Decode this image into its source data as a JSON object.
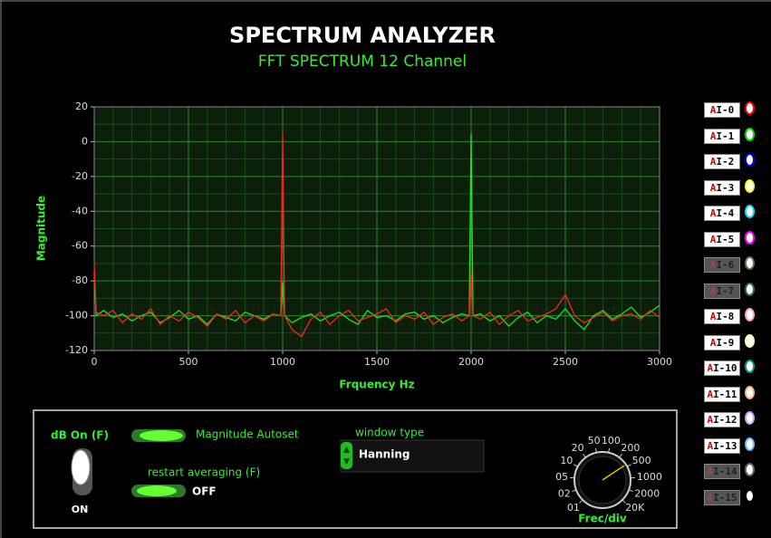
{
  "chart_data": {
    "type": "line",
    "title": "SPECTRUM ANALYZER",
    "subtitle": "FFT SPECTRUM 12 Channel",
    "x_label": "Frquency Hz",
    "y_label": "Magnitude",
    "xlim": [
      0,
      3000
    ],
    "ylim": [
      -120,
      20
    ],
    "xticks": [
      0,
      500,
      1000,
      1500,
      2000,
      2500,
      3000
    ],
    "yticks": [
      -120,
      -100,
      -80,
      -60,
      -40,
      -20,
      0,
      20
    ],
    "grid": true,
    "x": [
      0,
      10,
      50,
      100,
      150,
      200,
      250,
      300,
      350,
      400,
      450,
      500,
      550,
      600,
      650,
      700,
      750,
      800,
      850,
      900,
      950,
      990,
      1000,
      1010,
      1050,
      1100,
      1150,
      1200,
      1250,
      1300,
      1350,
      1400,
      1450,
      1500,
      1550,
      1600,
      1650,
      1700,
      1750,
      1800,
      1850,
      1900,
      1950,
      1990,
      2000,
      2010,
      2050,
      2100,
      2150,
      2200,
      2250,
      2300,
      2350,
      2400,
      2450,
      2500,
      2550,
      2600,
      2650,
      2700,
      2750,
      2800,
      2850,
      2900,
      2950,
      3000
    ],
    "series": [
      {
        "color": "#ff2020",
        "values": [
          -70,
          -98,
          -100,
          -97,
          -104,
          -99,
          -102,
          -96,
          -105,
          -100,
          -103,
          -98,
          -101,
          -106,
          -99,
          -102,
          -97,
          -104,
          -100,
          -103,
          -99,
          -100,
          5,
          -100,
          -108,
          -112,
          -102,
          -98,
          -105,
          -100,
          -97,
          -103,
          -101,
          -99,
          -96,
          -104,
          -100,
          -102,
          -98,
          -105,
          -101,
          -99,
          -103,
          -100,
          -75,
          -100,
          -102,
          -98,
          -105,
          -100,
          -97,
          -103,
          -101,
          -99,
          -96,
          -88,
          -100,
          -104,
          -101,
          -98,
          -103,
          -100,
          -99,
          -102,
          -97,
          -101
        ]
      },
      {
        "color": "#20e020",
        "values": [
          -75,
          -100,
          -97,
          -101,
          -99,
          -103,
          -100,
          -98,
          -104,
          -101,
          -97,
          -102,
          -100,
          -105,
          -99,
          -101,
          -103,
          -98,
          -100,
          -102,
          -99,
          -100,
          -80,
          -100,
          -104,
          -101,
          -99,
          -103,
          -100,
          -98,
          -102,
          -105,
          -97,
          -101,
          -100,
          -103,
          -99,
          -98,
          -102,
          -100,
          -104,
          -101,
          -99,
          -100,
          5,
          -100,
          -99,
          -103,
          -100,
          -106,
          -101,
          -98,
          -104,
          -100,
          -102,
          -96,
          -103,
          -108,
          -100,
          -97,
          -102,
          -99,
          -95,
          -101,
          -98,
          -94
        ]
      }
    ]
  },
  "channels": [
    {
      "name": "AI-0",
      "color": "#ff0000"
    },
    {
      "name": "AI-1",
      "color": "#00e000"
    },
    {
      "name": "AI-2",
      "color": "#0000ff"
    },
    {
      "name": "AI-3",
      "color": "#ffff00"
    },
    {
      "name": "AI-4",
      "color": "#00e0ff"
    },
    {
      "name": "AI-5",
      "color": "#ff00ff"
    },
    {
      "name": "AI-6",
      "color": "#7a6a50",
      "enabled": false
    },
    {
      "name": "AI-7",
      "color": "#2a6a60",
      "enabled": false
    },
    {
      "name": "AI-8",
      "color": "#ff99cc"
    },
    {
      "name": "AI-9",
      "color": "#ffffaa"
    },
    {
      "name": "AI-10",
      "color": "#00a080"
    },
    {
      "name": "AI-11",
      "color": "#ffb070"
    },
    {
      "name": "AI-12",
      "color": "#cc99ff"
    },
    {
      "name": "AI-13",
      "color": "#66bbff"
    },
    {
      "name": "AI-14",
      "color": "#666666",
      "enabled": false
    },
    {
      "name": "AI-15",
      "color": "#000000",
      "enabled": false
    }
  ],
  "controls": {
    "db_toggle": {
      "label": "dB On (F)",
      "state": "ON"
    },
    "magnitude_autoset": {
      "label": "Magnitude Autoset"
    },
    "restart_averaging": {
      "label": "restart averaging (F)",
      "state": "OFF"
    },
    "window_type": {
      "label": "window type",
      "value": "Hanning"
    },
    "knob": {
      "label": "Frec/div",
      "scale": [
        "01",
        "02",
        "05",
        "10",
        "20",
        "50",
        "100",
        "200",
        "500",
        "1000",
        "2000",
        "20K"
      ]
    }
  }
}
